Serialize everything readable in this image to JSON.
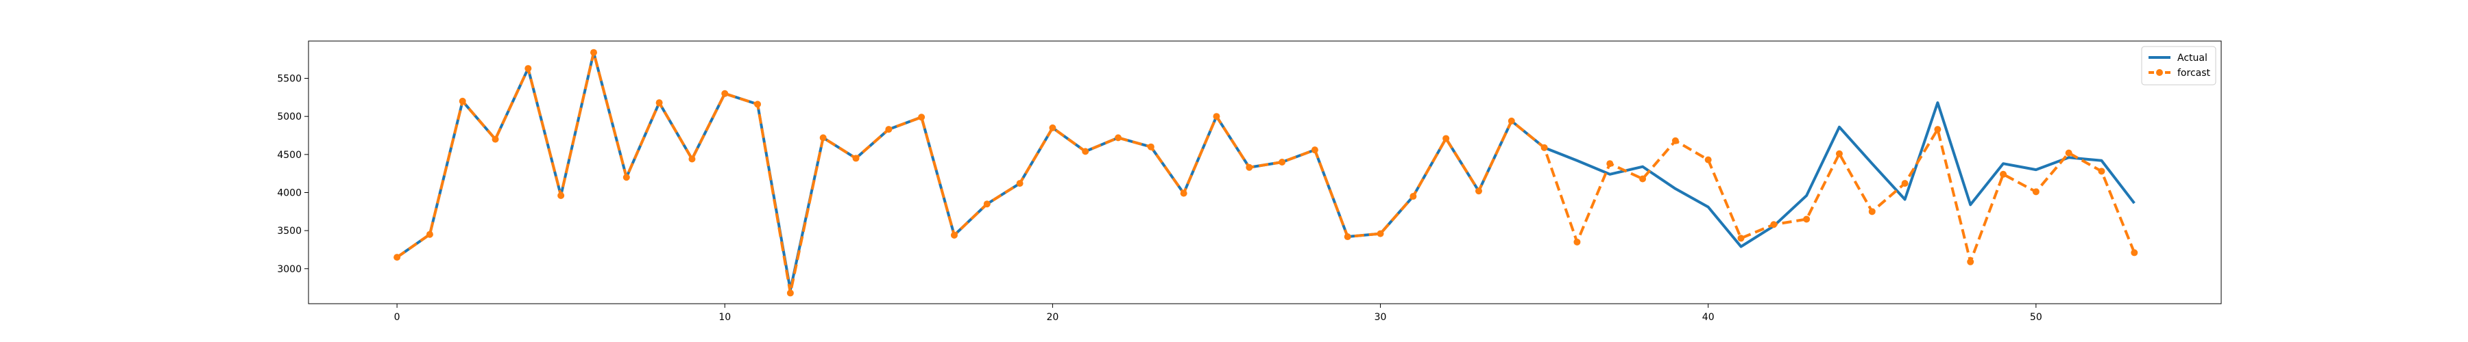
{
  "chart_data": {
    "type": "line",
    "title": "",
    "xlabel": "",
    "ylabel": "",
    "xlim": [
      -2.7,
      55.65
    ],
    "ylim": [
      2540,
      5990
    ],
    "xticks": [
      0,
      10,
      20,
      30,
      40,
      50
    ],
    "yticks": [
      3000,
      3500,
      4000,
      4500,
      5000,
      5500
    ],
    "grid": false,
    "legend": "top-right",
    "x": [
      0,
      1,
      2,
      3,
      4,
      5,
      6,
      7,
      8,
      9,
      10,
      11,
      12,
      13,
      14,
      15,
      16,
      17,
      18,
      19,
      20,
      21,
      22,
      23,
      24,
      25,
      26,
      27,
      28,
      29,
      30,
      31,
      32,
      33,
      34,
      35,
      36,
      37,
      38,
      39,
      40,
      41,
      42,
      43,
      44,
      45,
      46,
      47,
      48,
      49,
      50,
      51,
      52,
      53
    ],
    "series": [
      {
        "name": "Actual",
        "color": "#1f77b4",
        "style": "solid",
        "values": [
          3150,
          3450,
          5200,
          4700,
          5630,
          3960,
          5840,
          4200,
          5180,
          4440,
          5300,
          5160,
          2720,
          4720,
          4450,
          4830,
          4990,
          3440,
          3850,
          4120,
          4850,
          4540,
          4720,
          4600,
          3990,
          5000,
          4330,
          4400,
          4560,
          3420,
          3460,
          3950,
          4710,
          4020,
          4940,
          4590,
          4420,
          4240,
          4340,
          4050,
          3810,
          3290,
          3560,
          3960,
          4860,
          4380,
          3910,
          5180,
          3840,
          4380,
          4300,
          4460,
          4420,
          3860
        ]
      },
      {
        "name": "forcast",
        "color": "#ff7f0e",
        "style": "dashed",
        "marker": "circle",
        "values": [
          3150,
          3450,
          5200,
          4700,
          5630,
          3960,
          5840,
          4200,
          5180,
          4440,
          5300,
          5160,
          2680,
          4720,
          4450,
          4830,
          4990,
          3440,
          3850,
          4120,
          4850,
          4540,
          4720,
          4600,
          3990,
          5000,
          4330,
          4400,
          4560,
          3420,
          3460,
          3950,
          4710,
          4020,
          4940,
          4590,
          3350,
          4380,
          4180,
          4680,
          4430,
          3400,
          3580,
          3650,
          4510,
          3750,
          4120,
          4830,
          3090,
          4240,
          4010,
          4520,
          4280,
          3210
        ]
      }
    ]
  }
}
